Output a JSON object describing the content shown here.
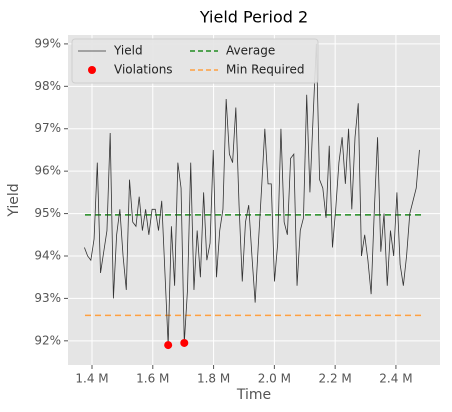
{
  "chart_data": {
    "type": "line",
    "title": "Yield Period 2",
    "xlabel": "Time",
    "ylabel": "Yield",
    "xlim": [
      1321000,
      2545000
    ],
    "ylim": [
      91.43,
      99.21
    ],
    "xticks": [
      {
        "value": 1400000,
        "label": "1.4 M"
      },
      {
        "value": 1600000,
        "label": "1.6 M"
      },
      {
        "value": 1800000,
        "label": "1.8 M"
      },
      {
        "value": 2000000,
        "label": "2.0 M"
      },
      {
        "value": 2200000,
        "label": "2.2 M"
      },
      {
        "value": 2400000,
        "label": "2.4 M"
      }
    ],
    "yticks": [
      {
        "value": 92,
        "label": "92%"
      },
      {
        "value": 93,
        "label": "93%"
      },
      {
        "value": 94,
        "label": "94%"
      },
      {
        "value": 95,
        "label": "95%"
      },
      {
        "value": 96,
        "label": "96%"
      },
      {
        "value": 97,
        "label": "97%"
      },
      {
        "value": 98,
        "label": "98%"
      },
      {
        "value": 99,
        "label": "99%"
      }
    ],
    "grid": true,
    "legend": "upper left",
    "legend_columns": 2,
    "series": [
      {
        "name": "Yield",
        "type": "line",
        "color": "#333333",
        "x": [
          1375000,
          1385600,
          1396200,
          1406800,
          1417400,
          1428000,
          1438600,
          1449200,
          1459800,
          1470400,
          1481000,
          1491600,
          1502200,
          1512800,
          1523400,
          1534000,
          1544600,
          1555200,
          1565800,
          1576400,
          1587000,
          1597600,
          1608200,
          1618800,
          1629400,
          1640000,
          1650600,
          1661200,
          1671800,
          1682400,
          1693000,
          1703600,
          1714200,
          1724800,
          1735400,
          1746000,
          1756600,
          1767200,
          1777800,
          1788400,
          1799000,
          1809600,
          1820200,
          1830800,
          1841400,
          1852000,
          1862600,
          1873200,
          1883800,
          1894400,
          1905000,
          1915600,
          1926200,
          1936800,
          1947400,
          1958000,
          1968600,
          1979200,
          1989800,
          2000400,
          2011000,
          2021600,
          2032200,
          2042800,
          2053400,
          2064000,
          2074600,
          2085200,
          2095800,
          2106400,
          2117000,
          2127600,
          2138200,
          2148800,
          2159400,
          2170000,
          2180600,
          2191200,
          2201800,
          2212400,
          2223000,
          2233600,
          2244200,
          2254800,
          2265400,
          2276000,
          2286600,
          2297200,
          2307800,
          2318400,
          2329000,
          2339600,
          2350200,
          2360800,
          2371400,
          2382000,
          2392600,
          2403200,
          2413800,
          2424400,
          2435000,
          2445600,
          2456200,
          2466800,
          2477400
        ],
        "values": [
          94.2,
          94.0,
          93.9,
          94.4,
          96.2,
          93.6,
          94.1,
          94.6,
          96.9,
          93.0,
          94.5,
          95.1,
          94.0,
          93.2,
          95.8,
          94.8,
          94.7,
          95.4,
          94.6,
          95.1,
          94.5,
          95.1,
          95.1,
          94.6,
          95.3,
          93.6,
          91.9,
          94.7,
          93.3,
          96.2,
          95.6,
          91.95,
          93.2,
          96.2,
          93.2,
          94.6,
          93.5,
          95.5,
          93.9,
          94.3,
          96.5,
          93.5,
          94.6,
          95.1,
          97.7,
          96.4,
          96.2,
          97.5,
          95.2,
          93.4,
          94.8,
          95.2,
          94.0,
          92.9,
          94.3,
          95.6,
          97.0,
          95.7,
          95.7,
          93.4,
          94.3,
          97.0,
          94.8,
          94.5,
          96.3,
          96.4,
          93.3,
          94.6,
          94.9,
          97.8,
          95.5,
          97.3,
          99.0,
          95.8,
          95.6,
          94.9,
          96.6,
          94.2,
          95.1,
          96.2,
          96.8,
          95.7,
          97.0,
          95.1,
          96.8,
          97.6,
          94.0,
          94.5,
          93.9,
          93.1,
          95.1,
          96.8,
          94.1,
          95.0,
          93.3,
          94.6,
          94.0,
          95.5,
          93.8,
          93.3,
          94.0,
          95.0,
          95.3,
          95.6,
          96.5
        ]
      },
      {
        "name": "Violations",
        "type": "scatter",
        "color": "#ff0000",
        "x": [
          1650600,
          1703600
        ],
        "values": [
          91.9,
          91.95
        ]
      }
    ],
    "hlines": [
      {
        "name": "Average",
        "value": 94.97,
        "color": "#228b22"
      },
      {
        "name": "Min Required",
        "value": 92.6,
        "color": "#ffa040"
      }
    ]
  }
}
